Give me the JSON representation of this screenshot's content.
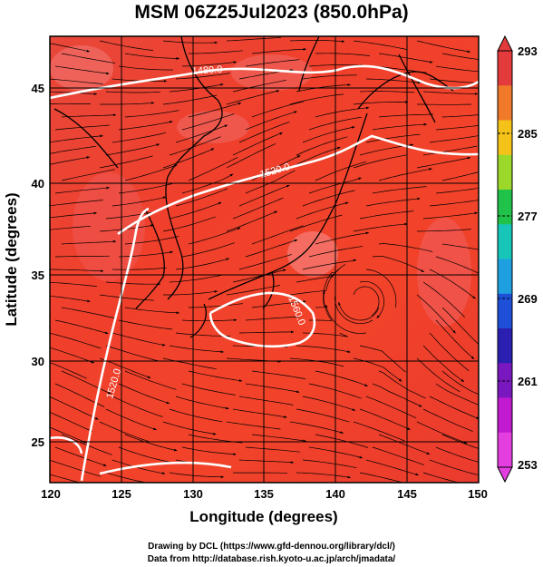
{
  "title": "MSM 06Z25Jul2023 (850.0hPa)",
  "axes": {
    "xlabel": "Longitude (degrees)",
    "ylabel": "Latitude  (degrees)",
    "xticks": [
      "120",
      "125",
      "130",
      "135",
      "140",
      "145",
      "150"
    ],
    "yticks": [
      "25",
      "30",
      "35",
      "40",
      "45"
    ]
  },
  "colorbar": {
    "labels": [
      "293",
      "285",
      "277",
      "269",
      "261",
      "253"
    ],
    "colors": [
      "#e33b3b",
      "#f07a2a",
      "#f5c21a",
      "#9bd82a",
      "#21c24a",
      "#17c6b8",
      "#1ea0e0",
      "#1e4fd8",
      "#2a1fb0",
      "#7a18c0",
      "#c21ad0",
      "#e43ee0"
    ]
  },
  "contours": [
    {
      "label": "1480.0"
    },
    {
      "label": "1520.0"
    },
    {
      "label": "1520.0"
    },
    {
      "label": "1560.0"
    }
  ],
  "credits": {
    "line1": "Drawing by DCL (https://www.gfd-dennou.org/library/dcl/)",
    "line2": "Data from http://database.rish.kyoto-u.ac.jp/arch/jmadata/"
  },
  "chart_data": {
    "type": "heatmap",
    "title": "MSM 06Z25Jul2023 (850.0hPa)",
    "xlabel": "Longitude (degrees)",
    "ylabel": "Latitude  (degrees)",
    "xlim": [
      120,
      150
    ],
    "ylim": [
      22.5,
      48
    ],
    "color_scale": {
      "min": 253,
      "max": 293,
      "ticks": [
        293,
        285,
        277,
        269,
        261,
        253
      ]
    },
    "field_range_shown": [
      289,
      293
    ],
    "grid": true,
    "contour_levels": [
      1480,
      1520,
      1560
    ],
    "overlays": [
      "streamlines",
      "coastlines"
    ]
  }
}
